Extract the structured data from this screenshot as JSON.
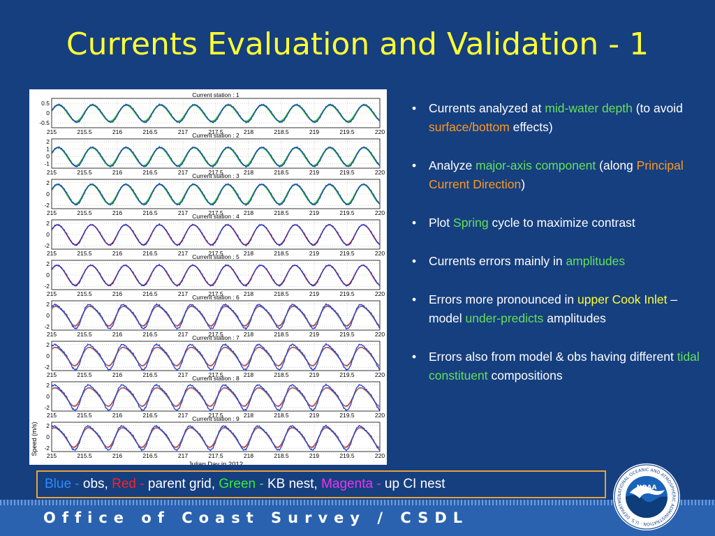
{
  "slide": {
    "title": "Currents Evaluation and Validation - 1",
    "footer": "Office of Coast Survey / CSDL",
    "logo_text": "NOAA",
    "logo_ring_text": "NATIONAL OCEANIC AND ATMOSPHERIC ADMINISTRATION · U.S. DEPARTMENT OF COMMERCE ·"
  },
  "bullets": [
    [
      {
        "t": "Currents analyzed at "
      },
      {
        "t": "mid-water depth",
        "c": "green"
      },
      {
        "t": " (to avoid "
      },
      {
        "t": "surface/bottom",
        "c": "orange"
      },
      {
        "t": " effects)"
      }
    ],
    [
      {
        "t": "Analyze "
      },
      {
        "t": "major-axis component",
        "c": "green"
      },
      {
        "t": " (along "
      },
      {
        "t": "Principal Current Direction",
        "c": "orange"
      },
      {
        "t": ")"
      }
    ],
    [
      {
        "t": "Plot "
      },
      {
        "t": "Spring",
        "c": "green"
      },
      {
        "t": " cycle to maximize contrast"
      }
    ],
    [
      {
        "t": "Currents errors mainly in "
      },
      {
        "t": "amplitudes",
        "c": "green"
      }
    ],
    [
      {
        "t": "Errors more pronounced in "
      },
      {
        "t": "upper Cook Inlet",
        "c": "yellow"
      },
      {
        "t": " – model "
      },
      {
        "t": "under-predicts",
        "c": "green"
      },
      {
        "t": " amplitudes"
      }
    ],
    [
      {
        "t": "Errors also from model & obs having different "
      },
      {
        "t": "tidal constituent",
        "c": "green"
      },
      {
        "t": " compositions"
      }
    ]
  ],
  "legend": [
    {
      "label": "Blue - ",
      "text": "obs, ",
      "color": "#2a8cff"
    },
    {
      "label": "Red - ",
      "text": "parent grid, ",
      "color": "#ff2020"
    },
    {
      "label": "Green - ",
      "text": "KB nest, ",
      "color": "#33ee33"
    },
    {
      "label": "Magenta - ",
      "text": "up CI nest",
      "color": "#ee33ee"
    }
  ],
  "colors": {
    "background": "#163f7f",
    "title": "#ffff33",
    "green_highlight": "#66e05a",
    "orange_highlight": "#ff9a1f",
    "yellow_highlight": "#ffff33",
    "footer_band": "#2a62b0",
    "legend_border": "#e8a43a",
    "series_obs": "#1f3fd0",
    "series_parent": "#e01818",
    "series_kb": "#22c022",
    "series_upci": "#a07070"
  },
  "chart_data": {
    "type": "line",
    "xlabel": "Julian Day in 2012",
    "ylabel": "Speed (m/s)",
    "xlim": [
      215,
      220
    ],
    "x_ticks": [
      "215",
      "215.5",
      "216",
      "216.5",
      "217",
      "217.5",
      "218",
      "218.5",
      "219",
      "219.5",
      "220"
    ],
    "period_days": 0.5175,
    "panels": [
      {
        "title": "Current station : 1",
        "yticks": [
          "0.5",
          "0",
          "-0.5"
        ],
        "ylim": [
          -0.75,
          0.75
        ],
        "amp_obs": 0.45,
        "amp_model": 0.42,
        "model": "kb",
        "series": [
          {
            "role": "obs",
            "values": [
              0.45,
              -0.45
            ]
          },
          {
            "role": "parent",
            "values": [
              0.42,
              -0.42
            ]
          },
          {
            "role": "kb",
            "values": [
              0.42,
              -0.42
            ]
          }
        ]
      },
      {
        "title": "Current station : 2",
        "yticks": [
          "2",
          "1",
          "0",
          "-1"
        ],
        "ylim": [
          -1.6,
          2.4
        ],
        "amp_obs": 1.3,
        "amp_model": 1.25,
        "model": "kb",
        "series": [
          {
            "role": "obs",
            "values": [
              1.3,
              -1.3
            ]
          },
          {
            "role": "parent",
            "values": [
              1.25,
              -1.25
            ]
          },
          {
            "role": "kb",
            "values": [
              1.25,
              -1.25
            ]
          }
        ]
      },
      {
        "title": "Current station : 3",
        "yticks": [
          "2",
          "0",
          "-2"
        ],
        "ylim": [
          -2.6,
          2.6
        ],
        "amp_obs": 1.8,
        "amp_model": 1.75,
        "model": "kb",
        "series": [
          {
            "role": "obs",
            "values": [
              1.8,
              -1.8
            ]
          },
          {
            "role": "parent",
            "values": [
              1.75,
              -1.75
            ]
          },
          {
            "role": "kb",
            "values": [
              1.75,
              -1.75
            ]
          }
        ]
      },
      {
        "title": "Current station : 4",
        "yticks": [
          "2",
          "0",
          "-2"
        ],
        "ylim": [
          -2.6,
          2.6
        ],
        "amp_obs": 1.8,
        "amp_model": 1.75,
        "model": "none",
        "series": [
          {
            "role": "obs",
            "values": [
              1.8,
              -1.8
            ]
          },
          {
            "role": "parent",
            "values": [
              1.75,
              -1.75
            ]
          }
        ]
      },
      {
        "title": "Current station : 5",
        "yticks": [
          "2",
          "0",
          "-2"
        ],
        "ylim": [
          -2.6,
          2.6
        ],
        "amp_obs": 1.8,
        "amp_model": 1.75,
        "model": "none",
        "series": [
          {
            "role": "obs",
            "values": [
              1.8,
              -1.8
            ]
          },
          {
            "role": "parent",
            "values": [
              1.75,
              -1.75
            ]
          }
        ]
      },
      {
        "title": "Current station : 6",
        "yticks": [
          "2",
          "0",
          "-2"
        ],
        "ylim": [
          -2.6,
          2.6
        ],
        "amp_obs": 2.0,
        "amp_model": 1.7,
        "model": "upci",
        "series": [
          {
            "role": "obs",
            "values": [
              2.0,
              -2.0
            ]
          },
          {
            "role": "parent",
            "values": [
              1.7,
              -1.7
            ]
          },
          {
            "role": "upci",
            "values": [
              1.7,
              -1.7
            ]
          }
        ]
      },
      {
        "title": "Current station : 7",
        "yticks": [
          "2",
          "0",
          "-2"
        ],
        "ylim": [
          -2.6,
          2.6
        ],
        "amp_obs": 2.1,
        "amp_model": 1.6,
        "model": "upci",
        "series": [
          {
            "role": "obs",
            "values": [
              2.1,
              -2.1
            ]
          },
          {
            "role": "parent",
            "values": [
              1.6,
              -1.6
            ]
          },
          {
            "role": "upci",
            "values": [
              1.6,
              -1.6
            ]
          }
        ]
      },
      {
        "title": "Current station : 8",
        "yticks": [
          "2",
          "0",
          "-2"
        ],
        "ylim": [
          -2.6,
          2.6
        ],
        "amp_obs": 2.1,
        "amp_model": 1.6,
        "model": "upci",
        "series": [
          {
            "role": "obs",
            "values": [
              2.1,
              -2.1
            ]
          },
          {
            "role": "parent",
            "values": [
              1.6,
              -1.6
            ]
          },
          {
            "role": "upci",
            "values": [
              1.6,
              -1.6
            ]
          }
        ]
      },
      {
        "title": "Current station : 9",
        "yticks": [
          "2",
          "0",
          "-2"
        ],
        "ylim": [
          -2.6,
          2.6
        ],
        "amp_obs": 2.0,
        "amp_model": 1.7,
        "model": "upci",
        "series": [
          {
            "role": "obs",
            "values": [
              2.0,
              -2.0
            ]
          },
          {
            "role": "parent",
            "values": [
              1.7,
              -1.7
            ]
          },
          {
            "role": "upci",
            "values": [
              1.7,
              -1.7
            ]
          }
        ]
      }
    ]
  }
}
